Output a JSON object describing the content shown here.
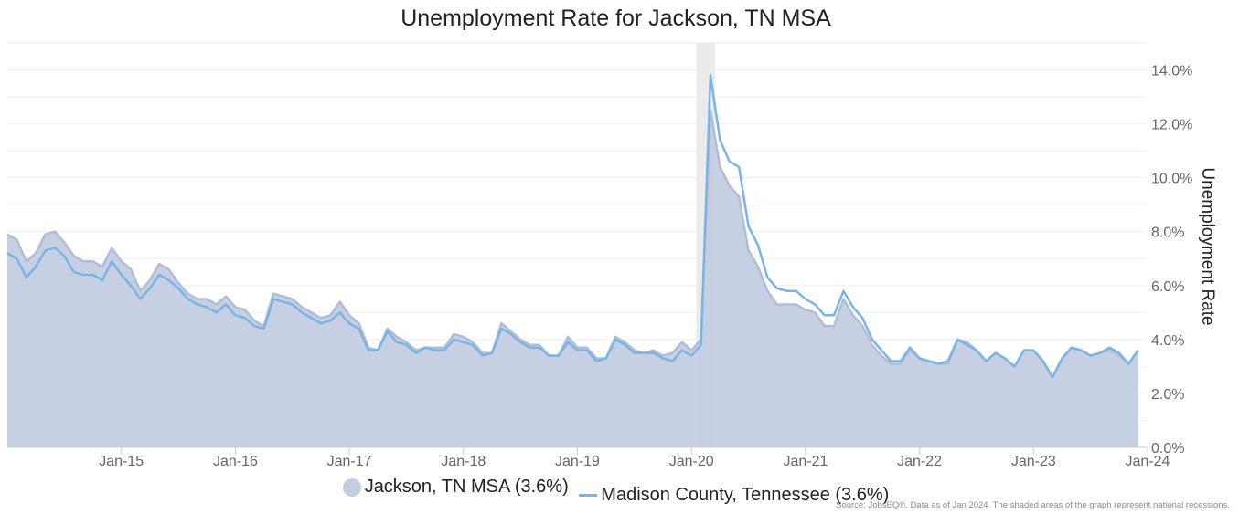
{
  "chart_data": {
    "type": "area",
    "title": "Unemployment Rate for Jackson, TN MSA",
    "ylabel": "Unemployment Rate",
    "xlabel": "",
    "ylim": [
      0,
      15.0
    ],
    "y_ticks": [
      "0.0%",
      "2.0%",
      "4.0%",
      "6.0%",
      "8.0%",
      "10.0%",
      "12.0%",
      "14.0%"
    ],
    "x_start": "2014-01",
    "x_end": "2024-01",
    "x_ticks": [
      {
        "date": "2015-01",
        "label": "Jan-15"
      },
      {
        "date": "2016-01",
        "label": "Jan-16"
      },
      {
        "date": "2017-01",
        "label": "Jan-17"
      },
      {
        "date": "2018-01",
        "label": "Jan-18"
      },
      {
        "date": "2019-01",
        "label": "Jan-19"
      },
      {
        "date": "2020-01",
        "label": "Jan-20"
      },
      {
        "date": "2021-01",
        "label": "Jan-21"
      },
      {
        "date": "2022-01",
        "label": "Jan-22"
      },
      {
        "date": "2023-01",
        "label": "Jan-23"
      },
      {
        "date": "2024-01",
        "label": "Jan-24"
      }
    ],
    "recession": {
      "start": "2020-02",
      "end": "2020-04"
    },
    "grid": true,
    "legend_position": "bottom",
    "series": [
      {
        "name": "Jackson, TN MSA (3.6%)",
        "style": "area",
        "color": "#c3cde0",
        "stroke": "#b1bdd6",
        "values": [
          7.9,
          7.7,
          6.9,
          7.2,
          7.9,
          8.0,
          7.6,
          7.1,
          6.9,
          6.9,
          6.7,
          7.4,
          6.9,
          6.6,
          5.8,
          6.2,
          6.8,
          6.6,
          6.1,
          5.7,
          5.5,
          5.5,
          5.3,
          5.6,
          5.2,
          5.1,
          4.7,
          4.5,
          5.7,
          5.6,
          5.5,
          5.2,
          5.0,
          4.8,
          4.9,
          5.4,
          4.9,
          4.6,
          3.7,
          3.6,
          4.4,
          4.1,
          3.9,
          3.6,
          3.7,
          3.7,
          3.7,
          4.2,
          4.1,
          3.9,
          3.5,
          3.5,
          4.6,
          4.3,
          4.0,
          3.8,
          3.8,
          3.4,
          3.4,
          4.1,
          3.7,
          3.7,
          3.3,
          3.3,
          4.1,
          3.9,
          3.6,
          3.5,
          3.6,
          3.4,
          3.5,
          3.9,
          3.6,
          4.0,
          12.5,
          10.4,
          9.7,
          9.3,
          7.3,
          6.7,
          5.8,
          5.3,
          5.3,
          5.3,
          5.1,
          5.0,
          4.5,
          4.5,
          5.5,
          4.9,
          4.5,
          3.8,
          3.4,
          3.1,
          3.1,
          3.6,
          3.3,
          3.2,
          3.1,
          3.1,
          4.0,
          3.9,
          3.6,
          3.2,
          3.5,
          3.3,
          3.0,
          3.6,
          3.6,
          3.2,
          2.6,
          3.3,
          3.7,
          3.6,
          3.4,
          3.5,
          3.6,
          3.4,
          3.1,
          3.6
        ]
      },
      {
        "name": "Madison County, Tennessee (3.6%)",
        "style": "line",
        "color": "#79b4e6",
        "values": [
          7.2,
          7.0,
          6.3,
          6.7,
          7.3,
          7.4,
          7.1,
          6.5,
          6.4,
          6.4,
          6.2,
          6.9,
          6.4,
          6.0,
          5.5,
          5.9,
          6.4,
          6.2,
          5.9,
          5.5,
          5.3,
          5.2,
          5.0,
          5.3,
          4.9,
          4.8,
          4.5,
          4.4,
          5.5,
          5.4,
          5.3,
          5.0,
          4.8,
          4.6,
          4.7,
          5.0,
          4.6,
          4.4,
          3.6,
          3.6,
          4.3,
          3.9,
          3.8,
          3.5,
          3.7,
          3.6,
          3.6,
          4.0,
          3.9,
          3.8,
          3.4,
          3.5,
          4.4,
          4.2,
          3.9,
          3.7,
          3.7,
          3.4,
          3.4,
          3.9,
          3.6,
          3.6,
          3.2,
          3.3,
          4.0,
          3.8,
          3.5,
          3.5,
          3.5,
          3.3,
          3.2,
          3.6,
          3.4,
          3.8,
          13.8,
          11.4,
          10.6,
          10.4,
          8.2,
          7.5,
          6.3,
          5.9,
          5.8,
          5.8,
          5.5,
          5.3,
          4.9,
          4.9,
          5.8,
          5.2,
          4.8,
          4.0,
          3.6,
          3.2,
          3.2,
          3.7,
          3.3,
          3.2,
          3.1,
          3.2,
          4.0,
          3.8,
          3.6,
          3.2,
          3.5,
          3.3,
          3.0,
          3.6,
          3.6,
          3.2,
          2.6,
          3.3,
          3.7,
          3.6,
          3.4,
          3.5,
          3.7,
          3.5,
          3.1,
          3.6
        ]
      }
    ],
    "source_note": "Source: JobsEQ®. Data as of Jan 2024. The shaded areas of the graph represent national recessions."
  }
}
